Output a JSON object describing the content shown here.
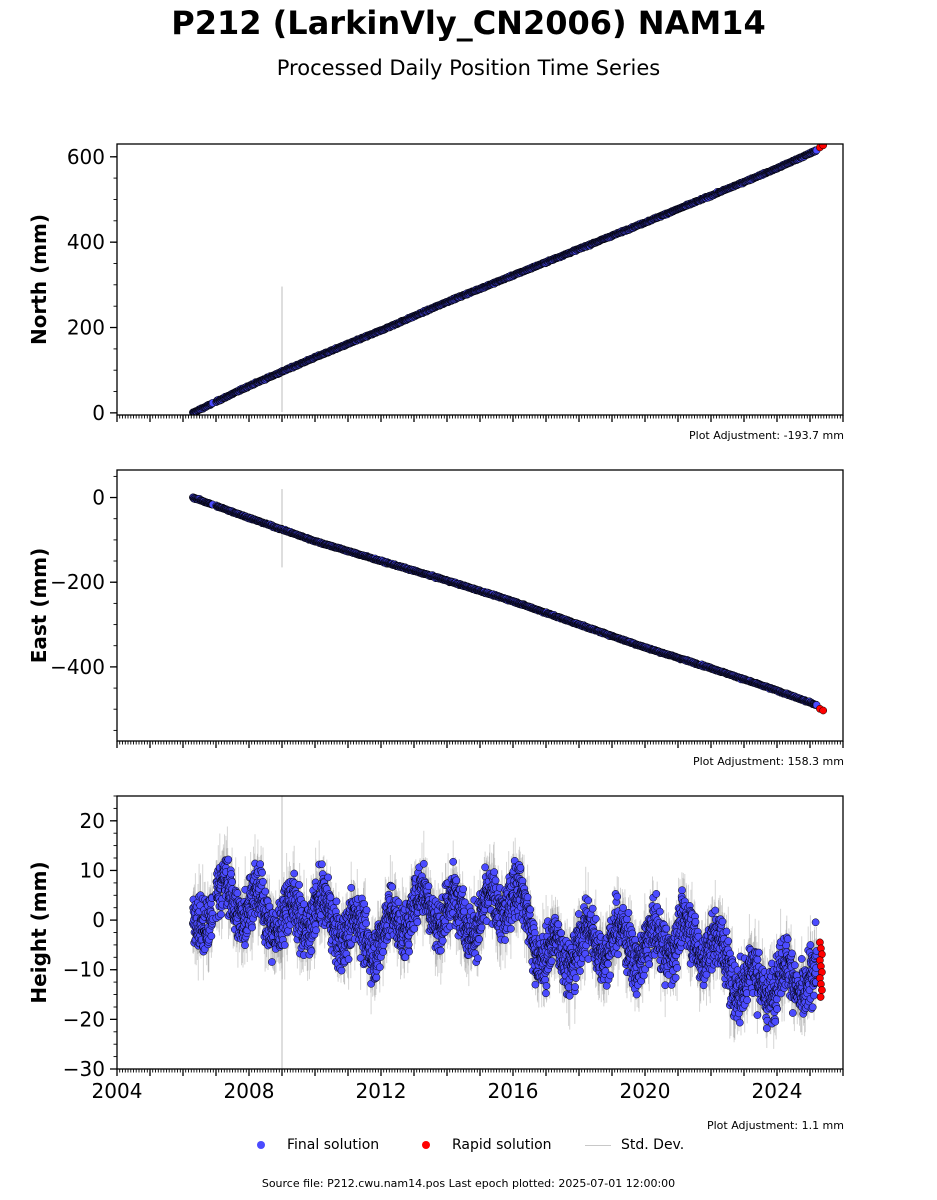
{
  "header": {
    "title": "P212 (LarkinVly_CN2006) NAM14",
    "subtitle": "Processed Daily Position Time Series"
  },
  "chart_data": [
    {
      "type": "scatter",
      "ylabel": "North (mm)",
      "xlim": [
        2004,
        2026
      ],
      "ylim": [
        -5,
        630
      ],
      "yticks": [
        0,
        200,
        400,
        600
      ],
      "plot_adjustment": "Plot Adjustment: -193.7 mm",
      "series": [
        {
          "name": "Final solution",
          "x": [
            2006.3,
            2008,
            2010,
            2012,
            2014,
            2016,
            2018,
            2020,
            2022,
            2024,
            2025.2
          ],
          "y": [
            0,
            63,
            130,
            193,
            260,
            322,
            384,
            446,
            509,
            573,
            615
          ]
        },
        {
          "name": "Rapid solution",
          "x": [
            2025.3,
            2025.4
          ],
          "y": [
            622,
            627
          ]
        }
      ],
      "std_dev_outlier": {
        "x": 2009.0,
        "y_low": 2,
        "y_high": 296
      }
    },
    {
      "type": "scatter",
      "ylabel": "East (mm)",
      "xlim": [
        2004,
        2026
      ],
      "ylim": [
        -575,
        65
      ],
      "yticks": [
        0,
        -200,
        -400
      ],
      "plot_adjustment": "Plot Adjustment: 158.3 mm",
      "series": [
        {
          "name": "Final solution",
          "x": [
            2006.3,
            2008,
            2010,
            2012,
            2014,
            2016,
            2018,
            2020,
            2022,
            2024,
            2025.2
          ],
          "y": [
            0,
            -48,
            -103,
            -150,
            -196,
            -245,
            -300,
            -354,
            -403,
            -456,
            -490
          ]
        },
        {
          "name": "Rapid solution",
          "x": [
            2025.3,
            2025.4
          ],
          "y": [
            -499,
            -503
          ]
        }
      ],
      "std_dev_outlier": {
        "x": 2009.0,
        "y_low": -165,
        "y_high": 20
      }
    },
    {
      "type": "scatter",
      "ylabel": "Height (mm)",
      "xlabel_ticks": [
        "2004",
        "2008",
        "2012",
        "2016",
        "2020",
        "2024"
      ],
      "xlim": [
        2004,
        2026
      ],
      "ylim": [
        -30,
        25
      ],
      "yticks": [
        20,
        10,
        0,
        -10,
        -20,
        -30
      ],
      "plot_adjustment": "Plot Adjustment: 1.1 mm",
      "series": [
        {
          "name": "Final solution",
          "x": [
            2006.3,
            2007,
            2008,
            2009,
            2010,
            2011,
            2012,
            2013,
            2014,
            2015,
            2016,
            2017,
            2018,
            2019,
            2020,
            2021,
            2022,
            2023,
            2024,
            2025.2
          ],
          "y": [
            -3,
            5,
            3,
            0,
            2,
            -2,
            -4,
            3,
            2,
            0,
            6,
            -8,
            -5,
            -4,
            -6,
            -3,
            -5,
            -13,
            -12,
            -12
          ]
        },
        {
          "name": "Rapid solution",
          "x": [
            2025.3,
            2025.35,
            2025.4
          ],
          "y": [
            -5,
            -9,
            -13
          ]
        }
      ],
      "std_dev_outlier": {
        "x": 2009.0,
        "y_low": -30,
        "y_high": 25
      }
    }
  ],
  "legend": {
    "final": "Final solution",
    "rapid": "Rapid solution",
    "std": "Std. Dev.",
    "final_color": "#4b4bff",
    "rapid_color": "#ff0000",
    "std_color": "#c8c8c8"
  },
  "footer": {
    "text": "Source file: P212.cwu.nam14.pos  Last epoch plotted: 2025-07-01 12:00:00"
  }
}
